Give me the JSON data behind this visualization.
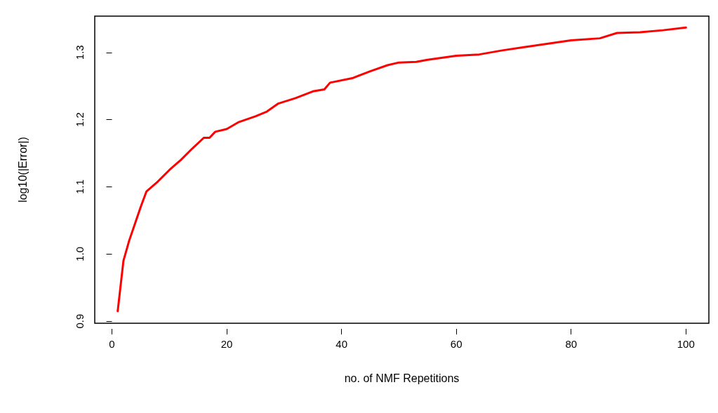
{
  "chart_data": {
    "type": "line",
    "xlabel": "no. of NMF Repetitions",
    "ylabel": "log10(|Error|)",
    "xlim": [
      -3,
      104
    ],
    "ylim": [
      0.897,
      1.354
    ],
    "xticks": [
      0,
      20,
      40,
      60,
      80,
      100
    ],
    "yticks": [
      {
        "value": 0.9,
        "label": "0.9"
      },
      {
        "value": 1.0,
        "label": "1.0"
      },
      {
        "value": 1.1,
        "label": "1.1"
      },
      {
        "value": 1.2,
        "label": "1.2"
      },
      {
        "value": 1.3,
        "label": "1.3"
      }
    ],
    "grid": false,
    "marker": "none",
    "line_style": "solid",
    "series": [
      {
        "color": "#ff0000",
        "x": [
          1,
          2,
          3,
          4,
          5,
          6,
          8,
          10,
          12,
          14,
          16,
          17,
          18,
          20,
          22,
          25,
          27,
          29,
          32,
          35,
          37,
          38,
          42,
          45,
          48,
          50,
          53,
          55,
          60,
          64,
          68,
          72,
          76,
          80,
          85,
          88,
          92,
          96,
          100
        ],
        "values": [
          0.915,
          0.99,
          1.02,
          1.045,
          1.07,
          1.093,
          1.108,
          1.125,
          1.14,
          1.157,
          1.173,
          1.173,
          1.182,
          1.186,
          1.196,
          1.205,
          1.212,
          1.224,
          1.232,
          1.242,
          1.245,
          1.255,
          1.262,
          1.272,
          1.281,
          1.285,
          1.286,
          1.289,
          1.295,
          1.297,
          1.303,
          1.308,
          1.313,
          1.318,
          1.321,
          1.329,
          1.33,
          1.333,
          1.337
        ]
      }
    ]
  }
}
